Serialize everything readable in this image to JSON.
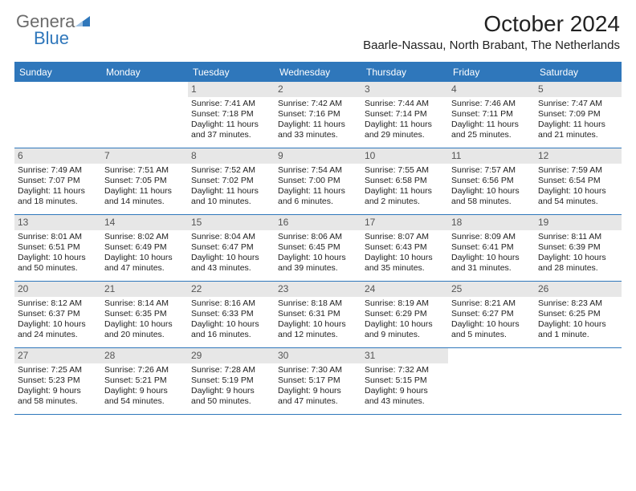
{
  "brand": {
    "word1": "Genera",
    "word2": "Blue"
  },
  "title": "October 2024",
  "subtitle": "Baarle-Nassau, North Brabant, The Netherlands",
  "colors": {
    "brand_blue": "#2f77bb",
    "header_bg": "#2f77bb",
    "header_text": "#ffffff",
    "daynum_bg": "#e7e7e7",
    "daynum_text": "#555555",
    "text": "#222222",
    "rule": "#2f77bb"
  },
  "day_names": [
    "Sunday",
    "Monday",
    "Tuesday",
    "Wednesday",
    "Thursday",
    "Friday",
    "Saturday"
  ],
  "calendar": {
    "type": "table",
    "columns": 7,
    "lead_blanks": 2,
    "font_size_cell": 10.5,
    "font_size_daynum": 12,
    "font_size_header": 12,
    "days": [
      {
        "n": "1",
        "sunrise": "Sunrise: 7:41 AM",
        "sunset": "Sunset: 7:18 PM",
        "day1": "Daylight: 11 hours",
        "day2": "and 37 minutes."
      },
      {
        "n": "2",
        "sunrise": "Sunrise: 7:42 AM",
        "sunset": "Sunset: 7:16 PM",
        "day1": "Daylight: 11 hours",
        "day2": "and 33 minutes."
      },
      {
        "n": "3",
        "sunrise": "Sunrise: 7:44 AM",
        "sunset": "Sunset: 7:14 PM",
        "day1": "Daylight: 11 hours",
        "day2": "and 29 minutes."
      },
      {
        "n": "4",
        "sunrise": "Sunrise: 7:46 AM",
        "sunset": "Sunset: 7:11 PM",
        "day1": "Daylight: 11 hours",
        "day2": "and 25 minutes."
      },
      {
        "n": "5",
        "sunrise": "Sunrise: 7:47 AM",
        "sunset": "Sunset: 7:09 PM",
        "day1": "Daylight: 11 hours",
        "day2": "and 21 minutes."
      },
      {
        "n": "6",
        "sunrise": "Sunrise: 7:49 AM",
        "sunset": "Sunset: 7:07 PM",
        "day1": "Daylight: 11 hours",
        "day2": "and 18 minutes."
      },
      {
        "n": "7",
        "sunrise": "Sunrise: 7:51 AM",
        "sunset": "Sunset: 7:05 PM",
        "day1": "Daylight: 11 hours",
        "day2": "and 14 minutes."
      },
      {
        "n": "8",
        "sunrise": "Sunrise: 7:52 AM",
        "sunset": "Sunset: 7:02 PM",
        "day1": "Daylight: 11 hours",
        "day2": "and 10 minutes."
      },
      {
        "n": "9",
        "sunrise": "Sunrise: 7:54 AM",
        "sunset": "Sunset: 7:00 PM",
        "day1": "Daylight: 11 hours",
        "day2": "and 6 minutes."
      },
      {
        "n": "10",
        "sunrise": "Sunrise: 7:55 AM",
        "sunset": "Sunset: 6:58 PM",
        "day1": "Daylight: 11 hours",
        "day2": "and 2 minutes."
      },
      {
        "n": "11",
        "sunrise": "Sunrise: 7:57 AM",
        "sunset": "Sunset: 6:56 PM",
        "day1": "Daylight: 10 hours",
        "day2": "and 58 minutes."
      },
      {
        "n": "12",
        "sunrise": "Sunrise: 7:59 AM",
        "sunset": "Sunset: 6:54 PM",
        "day1": "Daylight: 10 hours",
        "day2": "and 54 minutes."
      },
      {
        "n": "13",
        "sunrise": "Sunrise: 8:01 AM",
        "sunset": "Sunset: 6:51 PM",
        "day1": "Daylight: 10 hours",
        "day2": "and 50 minutes."
      },
      {
        "n": "14",
        "sunrise": "Sunrise: 8:02 AM",
        "sunset": "Sunset: 6:49 PM",
        "day1": "Daylight: 10 hours",
        "day2": "and 47 minutes."
      },
      {
        "n": "15",
        "sunrise": "Sunrise: 8:04 AM",
        "sunset": "Sunset: 6:47 PM",
        "day1": "Daylight: 10 hours",
        "day2": "and 43 minutes."
      },
      {
        "n": "16",
        "sunrise": "Sunrise: 8:06 AM",
        "sunset": "Sunset: 6:45 PM",
        "day1": "Daylight: 10 hours",
        "day2": "and 39 minutes."
      },
      {
        "n": "17",
        "sunrise": "Sunrise: 8:07 AM",
        "sunset": "Sunset: 6:43 PM",
        "day1": "Daylight: 10 hours",
        "day2": "and 35 minutes."
      },
      {
        "n": "18",
        "sunrise": "Sunrise: 8:09 AM",
        "sunset": "Sunset: 6:41 PM",
        "day1": "Daylight: 10 hours",
        "day2": "and 31 minutes."
      },
      {
        "n": "19",
        "sunrise": "Sunrise: 8:11 AM",
        "sunset": "Sunset: 6:39 PM",
        "day1": "Daylight: 10 hours",
        "day2": "and 28 minutes."
      },
      {
        "n": "20",
        "sunrise": "Sunrise: 8:12 AM",
        "sunset": "Sunset: 6:37 PM",
        "day1": "Daylight: 10 hours",
        "day2": "and 24 minutes."
      },
      {
        "n": "21",
        "sunrise": "Sunrise: 8:14 AM",
        "sunset": "Sunset: 6:35 PM",
        "day1": "Daylight: 10 hours",
        "day2": "and 20 minutes."
      },
      {
        "n": "22",
        "sunrise": "Sunrise: 8:16 AM",
        "sunset": "Sunset: 6:33 PM",
        "day1": "Daylight: 10 hours",
        "day2": "and 16 minutes."
      },
      {
        "n": "23",
        "sunrise": "Sunrise: 8:18 AM",
        "sunset": "Sunset: 6:31 PM",
        "day1": "Daylight: 10 hours",
        "day2": "and 12 minutes."
      },
      {
        "n": "24",
        "sunrise": "Sunrise: 8:19 AM",
        "sunset": "Sunset: 6:29 PM",
        "day1": "Daylight: 10 hours",
        "day2": "and 9 minutes."
      },
      {
        "n": "25",
        "sunrise": "Sunrise: 8:21 AM",
        "sunset": "Sunset: 6:27 PM",
        "day1": "Daylight: 10 hours",
        "day2": "and 5 minutes."
      },
      {
        "n": "26",
        "sunrise": "Sunrise: 8:23 AM",
        "sunset": "Sunset: 6:25 PM",
        "day1": "Daylight: 10 hours",
        "day2": "and 1 minute."
      },
      {
        "n": "27",
        "sunrise": "Sunrise: 7:25 AM",
        "sunset": "Sunset: 5:23 PM",
        "day1": "Daylight: 9 hours",
        "day2": "and 58 minutes."
      },
      {
        "n": "28",
        "sunrise": "Sunrise: 7:26 AM",
        "sunset": "Sunset: 5:21 PM",
        "day1": "Daylight: 9 hours",
        "day2": "and 54 minutes."
      },
      {
        "n": "29",
        "sunrise": "Sunrise: 7:28 AM",
        "sunset": "Sunset: 5:19 PM",
        "day1": "Daylight: 9 hours",
        "day2": "and 50 minutes."
      },
      {
        "n": "30",
        "sunrise": "Sunrise: 7:30 AM",
        "sunset": "Sunset: 5:17 PM",
        "day1": "Daylight: 9 hours",
        "day2": "and 47 minutes."
      },
      {
        "n": "31",
        "sunrise": "Sunrise: 7:32 AM",
        "sunset": "Sunset: 5:15 PM",
        "day1": "Daylight: 9 hours",
        "day2": "and 43 minutes."
      }
    ]
  }
}
